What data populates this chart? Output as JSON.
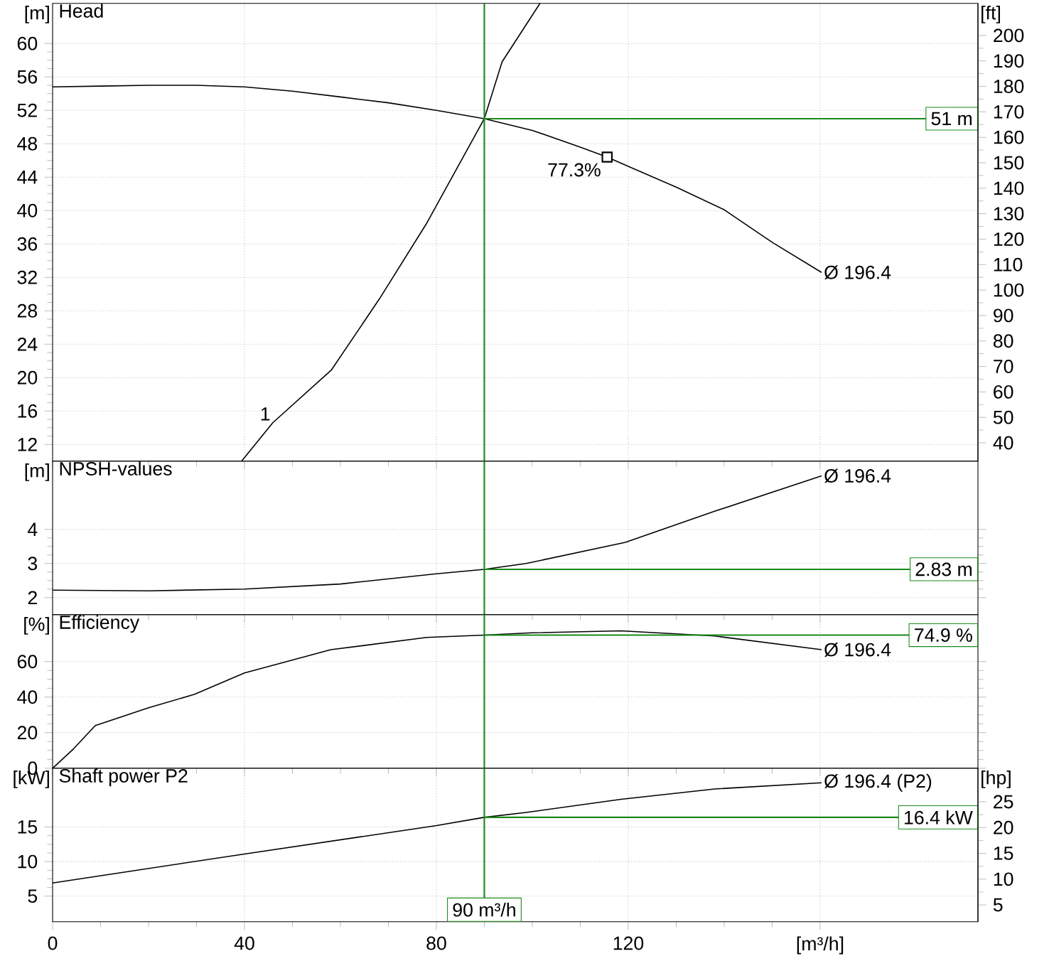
{
  "chart_data": [
    {
      "type": "line",
      "title": "Head",
      "ylabel": "[m]",
      "y2label": "[ft]",
      "xlim": [
        0,
        192.9
      ],
      "xticks": [
        0,
        40,
        80,
        120,
        160
      ],
      "ylim": [
        10,
        64.8
      ],
      "yticks": [
        12,
        16,
        20,
        24,
        28,
        32,
        36,
        40,
        44,
        48,
        52,
        56,
        60
      ],
      "y2lim": [
        32.8,
        212.6
      ],
      "y2ticks": [
        40,
        50,
        60,
        70,
        80,
        90,
        100,
        110,
        120,
        130,
        140,
        150,
        160,
        170,
        180,
        190,
        200
      ],
      "grid": true,
      "tick_labels": "y",
      "series": [
        {
          "name": "Ø 196.4",
          "color": "#000000",
          "x": [
            0,
            10,
            20,
            30,
            40,
            50,
            60,
            70,
            80,
            90,
            100,
            110,
            115.6,
            120,
            130,
            140,
            150,
            160.3
          ],
          "values": [
            54.8,
            54.9,
            55.0,
            55.0,
            54.8,
            54.3,
            53.6,
            52.9,
            52.0,
            51.0,
            49.6,
            47.6,
            46.4,
            45.3,
            42.8,
            40.1,
            36.2,
            32.6
          ]
        },
        {
          "name": "1",
          "color": "#000000",
          "x": [
            39.4,
            45.9,
            58.1,
            68.1,
            77.9,
            90,
            93.7,
            101.6
          ],
          "values": [
            10,
            14.6,
            20.9,
            29.4,
            38.4,
            51,
            57.8,
            64.8
          ]
        }
      ],
      "annotations": [
        {
          "text": "77.3%",
          "x": 115.6,
          "y": 46.4
        }
      ],
      "ref_lines": [
        {
          "axis": "x",
          "value": 90,
          "color": "#1a8a1a"
        },
        {
          "axis": "y",
          "value": 51,
          "label": "51 m",
          "color": "#1a8a1a"
        }
      ]
    },
    {
      "type": "line",
      "title": "NPSH-values",
      "ylabel": "[m]",
      "xlim": [
        0,
        192.9
      ],
      "xticks": [
        0,
        40,
        80,
        120,
        160
      ],
      "ylim": [
        1.5,
        6
      ],
      "yticks": [
        2,
        3,
        4
      ],
      "grid": true,
      "tick_labels": "y",
      "series": [
        {
          "name": "Ø 196.4",
          "color": "#000000",
          "x": [
            0,
            20,
            40,
            60,
            80,
            90,
            98.7,
            119.4,
            138,
            160.3
          ],
          "values": [
            2.22,
            2.2,
            2.25,
            2.4,
            2.7,
            2.83,
            3.0,
            3.62,
            4.53,
            5.57
          ]
        }
      ],
      "ref_lines": [
        {
          "axis": "x",
          "value": 90,
          "color": "#1a8a1a"
        },
        {
          "axis": "y",
          "value": 2.83,
          "label": "2.83 m",
          "color": "#1a8a1a"
        }
      ]
    },
    {
      "type": "line",
      "title": "Efficiency",
      "ylabel": "[%]",
      "xlim": [
        0,
        192.9
      ],
      "xticks": [
        0,
        40,
        80,
        120,
        160
      ],
      "ylim": [
        0,
        86.4
      ],
      "yticks": [
        0,
        20,
        40,
        60
      ],
      "grid": true,
      "tick_labels": "y",
      "series": [
        {
          "name": "Ø 196.4",
          "color": "#000000",
          "x": [
            0,
            4.4,
            8.9,
            20,
            29.6,
            40,
            58,
            78,
            90,
            100,
            118.5,
            138,
            160.3
          ],
          "values": [
            0,
            11,
            24,
            34,
            41.6,
            53.6,
            66.7,
            73.6,
            74.9,
            76.2,
            77.3,
            74.4,
            66.7
          ]
        }
      ],
      "ref_lines": [
        {
          "axis": "x",
          "value": 90,
          "color": "#1a8a1a"
        },
        {
          "axis": "y",
          "value": 74.9,
          "label": "74.9 %",
          "color": "#1a8a1a"
        }
      ]
    },
    {
      "type": "line",
      "title": "Shaft power P2",
      "ylabel": "[kW]",
      "y2label": "[hp]",
      "xlim": [
        0,
        192.9
      ],
      "xticks": [
        0,
        40,
        80,
        120,
        {
          "value": 160,
          "label": "[m³/h]"
        }
      ],
      "ylim": [
        1.3,
        23.5
      ],
      "yticks": [
        5,
        10,
        15
      ],
      "y2lim": [
        1.74,
        31.5
      ],
      "y2ticks": [
        5,
        10,
        15,
        20,
        25
      ],
      "grid": true,
      "series": [
        {
          "name": "Ø 196.4 (P2)",
          "color": "#000000",
          "x": [
            0,
            40,
            80,
            90,
            98.7,
            118.5,
            138,
            160.3
          ],
          "values": [
            6.9,
            11.1,
            15.2,
            16.4,
            17.1,
            19.0,
            20.5,
            21.4
          ]
        }
      ],
      "ref_lines": [
        {
          "axis": "x",
          "value": 90,
          "label": "90 m³/h",
          "color": "#1a8a1a"
        },
        {
          "axis": "y",
          "value": 16.4,
          "label": "16.4 kW",
          "color": "#1a8a1a"
        }
      ]
    }
  ]
}
